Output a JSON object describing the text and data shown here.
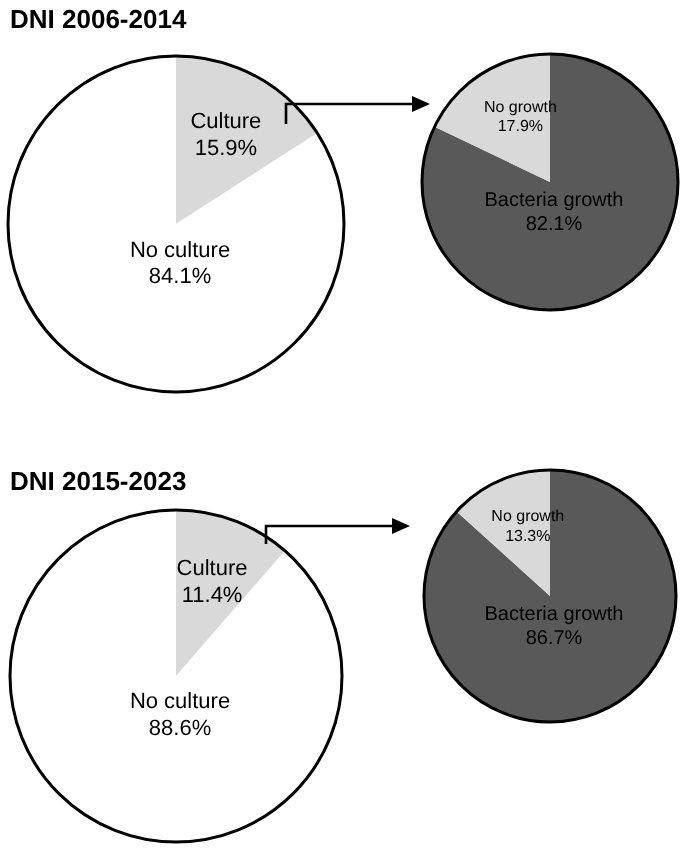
{
  "chart_data": [
    {
      "type": "pie",
      "title": "DNI 2006-2014",
      "categories": [
        "Culture",
        "No culture"
      ],
      "values": [
        15.9,
        84.1
      ],
      "colors": [
        "#d9d9d9",
        "#ffffff"
      ],
      "value_labels": [
        "15.9%",
        "84.1%"
      ]
    },
    {
      "type": "pie",
      "categories": [
        "Bacteria growth",
        "No growth"
      ],
      "values": [
        82.1,
        17.9
      ],
      "colors": [
        "#595959",
        "#d9d9d9"
      ],
      "value_labels": [
        "82.1%",
        "17.9%"
      ]
    },
    {
      "type": "pie",
      "title": "DNI 2015-2023",
      "categories": [
        "Culture",
        "No culture"
      ],
      "values": [
        11.4,
        88.6
      ],
      "colors": [
        "#d9d9d9",
        "#ffffff"
      ],
      "value_labels": [
        "11.4%",
        "88.6%"
      ]
    },
    {
      "type": "pie",
      "categories": [
        "Bacteria growth",
        "No growth"
      ],
      "values": [
        86.7,
        13.3
      ],
      "colors": [
        "#595959",
        "#d9d9d9"
      ],
      "value_labels": [
        "86.7%",
        "13.3%"
      ]
    }
  ]
}
